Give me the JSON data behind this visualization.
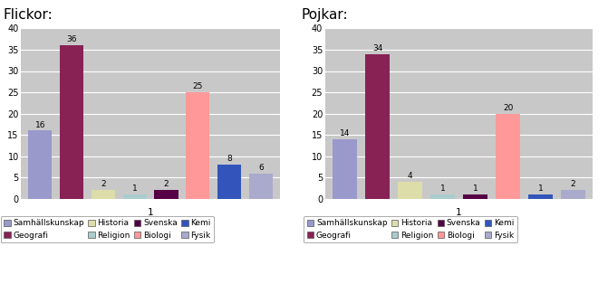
{
  "flickor_title": "Flickor:",
  "pojkar_title": "Pojkar:",
  "categories": [
    "Samhällskunskap",
    "Geografi",
    "Historia",
    "Religion",
    "Svenska",
    "Biologi",
    "Kemi",
    "Fysik"
  ],
  "flickor_values": [
    16,
    36,
    2,
    1,
    2,
    25,
    8,
    6
  ],
  "pojkar_values": [
    14,
    34,
    4,
    1,
    1,
    20,
    1,
    2
  ],
  "bar_colors": [
    "#9999cc",
    "#882255",
    "#ddddaa",
    "#aacccc",
    "#550044",
    "#ff9999",
    "#3355bb",
    "#aaaacc"
  ],
  "ylim": [
    0,
    40
  ],
  "yticks": [
    0,
    5,
    10,
    15,
    20,
    25,
    30,
    35,
    40
  ],
  "xlabel": "1",
  "plot_bg": "#c8c8c8",
  "legend_labels_row1": [
    "Samhällskunskap",
    "Geografi",
    "Historia",
    "Religion"
  ],
  "legend_labels_row2": [
    "Svenska",
    "Biologi",
    "Kemi",
    "Fysik"
  ],
  "title_fontsize": 11,
  "label_fontsize": 6.5,
  "legend_fontsize": 6.5,
  "bar_width": 0.75
}
